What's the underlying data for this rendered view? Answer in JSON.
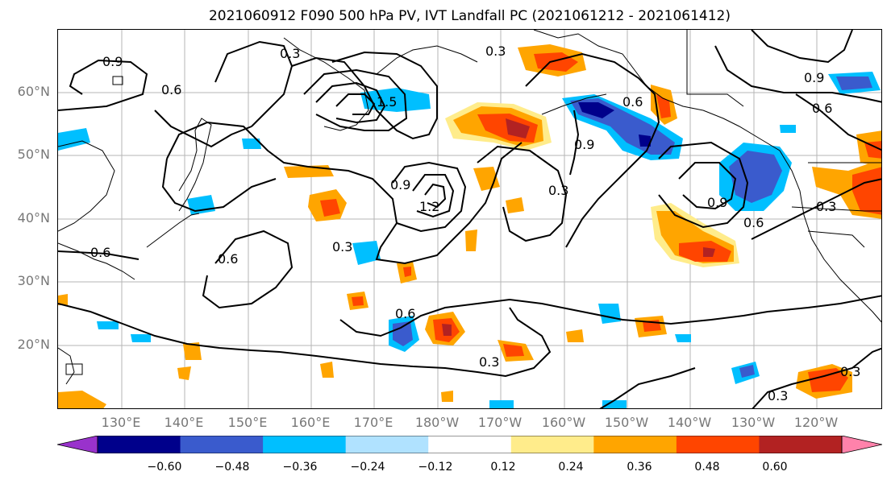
{
  "title": "2021060912 F090 500 hPa PV, IVT Landfall PC (2021061212 - 2021061412)",
  "lat_labels": [
    "60°N",
    "50°N",
    "40°N",
    "30°N",
    "20°N"
  ],
  "lon_labels": [
    "130°E",
    "140°E",
    "150°E",
    "160°E",
    "170°E",
    "180°W",
    "170°W",
    "160°W",
    "150°W",
    "140°W",
    "130°W",
    "120°W"
  ],
  "colorbar": {
    "ticks": [
      "−0.60",
      "−0.48",
      "−0.36",
      "−0.24",
      "−0.12",
      "0.12",
      "0.24",
      "0.36",
      "0.48",
      "0.60"
    ],
    "colors": [
      "#9932cc",
      "#00008b",
      "#3a5bcd",
      "#00bfff",
      "#b0e2ff",
      "#ffffff",
      "#ffec8b",
      "#ffa500",
      "#ff4500",
      "#b22222",
      "#ff82ab"
    ]
  },
  "contour_labels": [
    "0.9",
    "0.6",
    "0.3",
    "1.5",
    "1.2",
    "0.9",
    "0.6",
    "0.3",
    "0.6",
    "0.3",
    "0.6",
    "0.3",
    "0.6",
    "0.9",
    "0.6",
    "0.3",
    "0.3",
    "0.9",
    "0.6",
    "0.3",
    "0.6",
    "0.3",
    "0.6",
    "0.3",
    "0.9"
  ]
}
